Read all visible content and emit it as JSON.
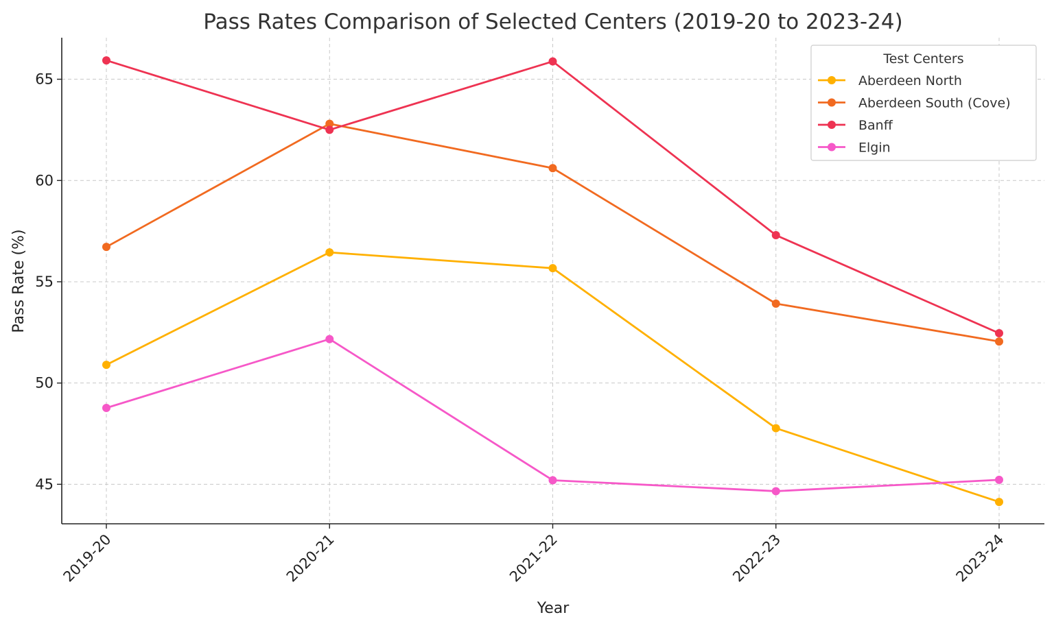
{
  "chart_data": {
    "type": "line",
    "title": "Pass Rates Comparison of Selected Centers (2019-20 to 2023-24)",
    "xlabel": "Year",
    "ylabel": "Pass Rate (%)",
    "categories": [
      "2019-20",
      "2020-21",
      "2021-22",
      "2022-23",
      "2023-24"
    ],
    "yticks": [
      45,
      50,
      55,
      60,
      65
    ],
    "ylim": [
      43.05,
      67.05
    ],
    "grid": true,
    "legend": {
      "title": "Test Centers",
      "placement": "top-right"
    },
    "series": [
      {
        "name": "Aberdeen North",
        "color": "#FFB000",
        "values": [
          50.9,
          56.45,
          55.67,
          47.77,
          44.13
        ]
      },
      {
        "name": "Aberdeen South (Cove)",
        "color": "#F16A20",
        "values": [
          56.72,
          62.8,
          60.61,
          53.92,
          52.05
        ]
      },
      {
        "name": "Banff",
        "color": "#EE3352",
        "values": [
          65.93,
          62.5,
          65.88,
          57.3,
          52.46
        ]
      },
      {
        "name": "Elgin",
        "color": "#F658C8",
        "values": [
          48.77,
          52.17,
          45.2,
          44.66,
          45.22
        ]
      }
    ]
  }
}
